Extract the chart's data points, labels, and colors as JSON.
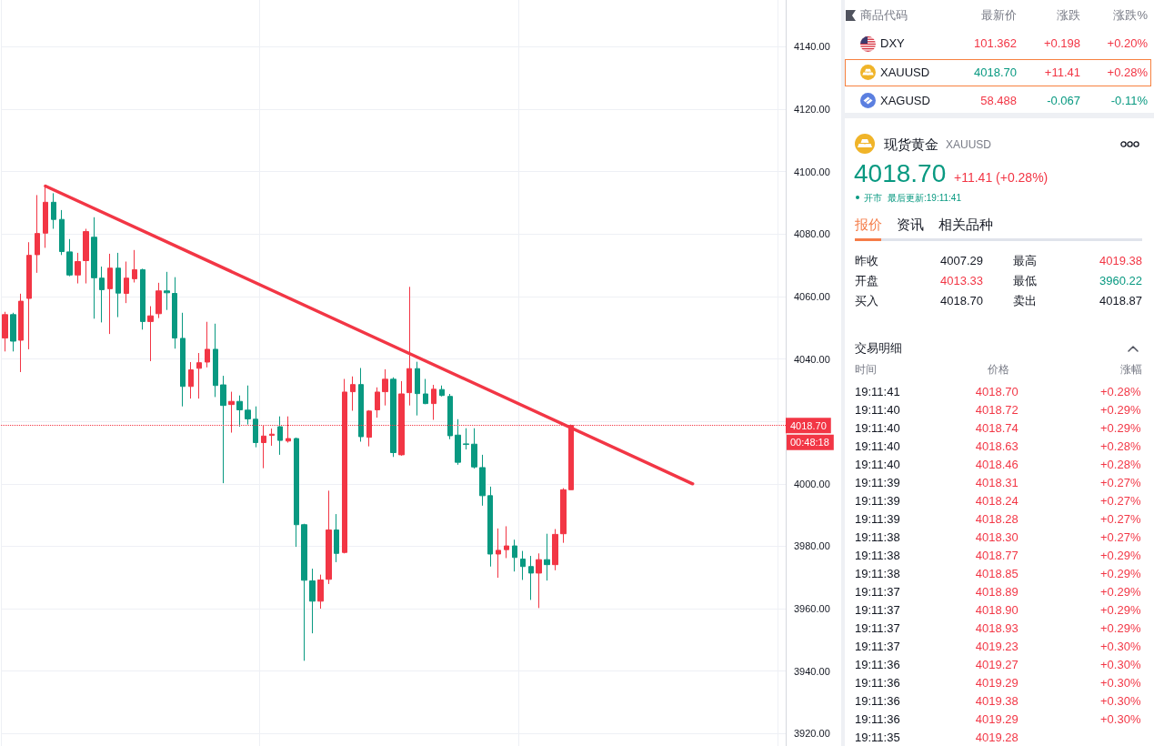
{
  "chart_data": [
    {
      "type": "candlestick",
      "categories": [
        null,
        null,
        null,
        null,
        null,
        null,
        null,
        null,
        null,
        null,
        null,
        null,
        null,
        null,
        null,
        null,
        null,
        null,
        null,
        null,
        null,
        null,
        null,
        null,
        null,
        null,
        null,
        null,
        null,
        null,
        null,
        null,
        null,
        null,
        null,
        null,
        null,
        null,
        null,
        null,
        null,
        null,
        null,
        null,
        null,
        null,
        null,
        null,
        null,
        null,
        null,
        null,
        null,
        null,
        null,
        null,
        null,
        null,
        null,
        null,
        null,
        null,
        null,
        null,
        null,
        null,
        null,
        null,
        null,
        null,
        null,
        null,
        null,
        null,
        null,
        null,
        null,
        null,
        null,
        null,
        null,
        null,
        null,
        null,
        null,
        null,
        null,
        null,
        null,
        null,
        null,
        null,
        null,
        null,
        null,
        null,
        null
      ],
      "series": [
        {
          "type": "candlestick",
          "ohlc": [
            [
              4046.7,
              4055.1,
              4042.4,
              4054.2
            ],
            [
              4054.2,
              4054.8,
              4042.4,
              4045.7
            ],
            [
              4046.0,
              4060.9,
              4035.8,
              4058.5
            ],
            [
              4059.4,
              4077.4,
              4043.1,
              4073.2
            ],
            [
              4073.4,
              4092.5,
              4067.6,
              4080.2
            ],
            [
              4080.3,
              4095.4,
              4075.6,
              4090.2
            ],
            [
              4090.2,
              4093.1,
              4081.7,
              4084.7
            ],
            [
              4084.7,
              4087.7,
              4073.3,
              4074.4
            ],
            [
              4074.3,
              4078.4,
              4066.5,
              4066.9
            ],
            [
              4066.9,
              4074.0,
              4064.2,
              4071.2
            ],
            [
              4071.5,
              4081.7,
              4064.2,
              4080.8
            ],
            [
              4079.0,
              4085.4,
              4052.9,
              4066.0
            ],
            [
              4065.9,
              4069.6,
              4051.7,
              4062.2
            ],
            [
              4062.5,
              4073.7,
              4048.0,
              4069.1
            ],
            [
              4069.1,
              4074.0,
              4053.4,
              4061.1
            ],
            [
              4061.0,
              4071.2,
              4057.9,
              4065.9
            ],
            [
              4065.7,
              4074.9,
              4064.5,
              4068.6
            ],
            [
              4068.6,
              4068.9,
              4049.4,
              4052.0
            ],
            [
              4052.0,
              4056.9,
              4039.3,
              4053.8
            ],
            [
              4054.5,
              4064.4,
              4053.1,
              4061.8
            ],
            [
              4061.8,
              4067.9,
              4055.7,
              4061.2
            ],
            [
              4061.0,
              4066.2,
              4043.3,
              4046.7
            ],
            [
              4046.6,
              4054.8,
              4024.8,
              4031.2
            ],
            [
              4031.2,
              4039.0,
              4027.3,
              4036.5
            ],
            [
              4037.0,
              4041.9,
              4027.3,
              4038.8
            ],
            [
              4039.0,
              4051.9,
              4037.3,
              4043.1
            ],
            [
              4043.1,
              4051.3,
              4027.8,
              4031.5
            ],
            [
              4031.7,
              4034.6,
              4000.2,
              4025.1
            ],
            [
              4025.4,
              4029.5,
              4016.4,
              4026.4
            ],
            [
              4026.4,
              4028.3,
              4018.3,
              4023.7
            ],
            [
              4023.6,
              4031.5,
              4019.0,
              4020.8
            ],
            [
              4020.7,
              4024.8,
              4011.7,
              4013.2
            ],
            [
              4013.2,
              4018.8,
              4005.0,
              4015.3
            ],
            [
              4015.5,
              4017.7,
              4012.2,
              4015.9
            ],
            [
              4018.3,
              4021.6,
              4009.3,
              4013.9
            ],
            [
              4013.7,
              4021.6,
              4013.2,
              4014.5
            ],
            [
              4014.5,
              4014.8,
              3979.8,
              3986.9
            ],
            [
              3986.9,
              3987.2,
              3943.3,
              3969.1
            ],
            [
              3968.9,
              3972.8,
              3952.1,
              3962.4
            ],
            [
              3962.4,
              3970.9,
              3960.0,
              3969.2
            ],
            [
              3969.4,
              3997.8,
              3967.9,
              3985.2
            ],
            [
              3985.2,
              3990.3,
              3974.9,
              3977.7
            ],
            [
              3978.0,
              4033.6,
              3977.7,
              4029.4
            ],
            [
              4029.5,
              4034.4,
              4023.4,
              4031.8
            ],
            [
              4031.8,
              4037.1,
              4013.5,
              4015.1
            ],
            [
              4014.9,
              4023.6,
              4012.0,
              4023.3
            ],
            [
              4023.7,
              4030.9,
              4021.2,
              4029.4
            ],
            [
              4029.5,
              4036.7,
              4025.1,
              4033.5
            ],
            [
              4033.5,
              4034.1,
              4008.6,
              4010.0
            ],
            [
              4009.3,
              4032.9,
              4009.0,
              4028.8
            ],
            [
              4029.2,
              4063.1,
              4025.1,
              4036.9
            ],
            [
              4036.9,
              4039.1,
              4021.9,
              4028.9
            ],
            [
              4028.8,
              4033.6,
              4025.5,
              4025.7
            ],
            [
              4025.7,
              4031.7,
              4020.5,
              4030.3
            ],
            [
              4030.2,
              4031.5,
              4028.0,
              4028.3
            ],
            [
              4028.0,
              4028.8,
              4014.3,
              4015.4
            ],
            [
              4015.6,
              4020.7,
              4006.1,
              4006.9
            ],
            [
              4012.8,
              4017.8,
              4011.0,
              4012.6
            ],
            [
              4012.7,
              4017.8,
              4004.9,
              4005.4
            ],
            [
              4005.2,
              4009.3,
              3993.0,
              3996.2
            ],
            [
              3996.2,
              3999.1,
              3973.5,
              3977.5
            ],
            [
              3977.5,
              3985.7,
              3969.9,
              3978.7
            ],
            [
              3978.9,
              3986.4,
              3976.2,
              3980.1
            ],
            [
              3980.1,
              3982.1,
              3971.9,
              3976.4
            ],
            [
              3975.9,
              3978.5,
              3969.2,
              3973.5
            ],
            [
              3973.5,
              3976.9,
              3962.8,
              3971.4
            ],
            [
              3971.4,
              3977.7,
              3960.2,
              3975.7
            ],
            [
              3975.7,
              3984.0,
              3969.0,
              3974.1
            ],
            [
              3974.1,
              3985.5,
              3972.3,
              3983.8
            ],
            [
              3984.0,
              3998.6,
              3981.1,
              3998.1
            ],
            [
              3998.1,
              4019.0,
              3998.1,
              4018.7
            ],
            null,
            null,
            null,
            null,
            null,
            null,
            null,
            null,
            null,
            null,
            null,
            null,
            null,
            null,
            null,
            null,
            null,
            null,
            null,
            null,
            null,
            null,
            null,
            null,
            null,
            null
          ],
          "colors": [
            "#f23645",
            "#089981",
            "#f23645",
            "#f23645",
            "#f23645",
            "#f23645",
            "#089981",
            "#089981",
            "#089981",
            "#f23645",
            "#f23645",
            "#089981",
            "#089981",
            "#f23645",
            "#089981",
            "#f23645",
            "#f23645",
            "#089981",
            "#f23645",
            "#f23645",
            "#089981",
            "#089981",
            "#089981",
            "#f23645",
            "#f23645",
            "#f23645",
            "#089981",
            "#089981",
            "#f23645",
            "#089981",
            "#089981",
            "#089981",
            "#f23645",
            "#f23645",
            "#089981",
            "#f23645",
            "#089981",
            "#089981",
            "#089981",
            "#f23645",
            "#f23645",
            "#089981",
            "#f23645",
            "#f23645",
            "#089981",
            "#f23645",
            "#f23645",
            "#f23645",
            "#089981",
            "#f23645",
            "#f23645",
            "#089981",
            "#089981",
            "#f23645",
            "#089981",
            "#089981",
            "#089981",
            "#089981",
            "#089981",
            "#089981",
            "#089981",
            "#f23645",
            "#f23645",
            "#089981",
            "#089981",
            "#089981",
            "#f23645",
            "#089981",
            "#f23645",
            "#f23645",
            "#f23645",
            null,
            null,
            null,
            null,
            null,
            null,
            null,
            null,
            null,
            null,
            null,
            null,
            null,
            null,
            null,
            null,
            null,
            null,
            null,
            null,
            null,
            null,
            null,
            null,
            null,
            null
          ]
        },
        {
          "type": "line",
          "color": "#f23645",
          "values": [
            null,
            null,
            null,
            null,
            null,
            4095.4,
            null,
            null,
            null,
            null,
            null,
            null,
            null,
            null,
            null,
            null,
            null,
            null,
            null,
            null,
            null,
            null,
            null,
            null,
            null,
            null,
            null,
            null,
            null,
            null,
            null,
            null,
            null,
            null,
            null,
            null,
            null,
            null,
            null,
            null,
            null,
            null,
            null,
            null,
            null,
            null,
            null,
            null,
            null,
            null,
            null,
            null,
            null,
            null,
            null,
            null,
            null,
            null,
            null,
            null,
            null,
            null,
            null,
            null,
            null,
            null,
            null,
            null,
            null,
            null,
            null,
            null,
            null,
            null,
            null,
            null,
            null,
            null,
            null,
            null,
            null,
            null,
            null,
            null,
            null,
            4000.0,
            null,
            null,
            null,
            null,
            null,
            null,
            null,
            null,
            null,
            null,
            null
          ]
        }
      ],
      "ylim": [
        3916,
        4155
      ],
      "yticks": [
        {
          "value": 3920,
          "label": "3920.00"
        },
        {
          "value": 3940,
          "label": "3940.00"
        },
        {
          "value": 3960,
          "label": "3960.00"
        },
        {
          "value": 3980,
          "label": "3980.00"
        },
        {
          "value": 4000,
          "label": "4000.00"
        },
        {
          "value": 4020,
          "label": null
        },
        {
          "value": 4040,
          "label": "4040.00"
        },
        {
          "value": 4060,
          "label": "4060.00"
        },
        {
          "value": 4080,
          "label": "4080.00"
        },
        {
          "value": 4100,
          "label": "4100.00"
        },
        {
          "value": 4120,
          "label": "4120.00"
        },
        {
          "value": 4140,
          "label": "4140.00"
        }
      ],
      "grid": true,
      "tick_labels": "y",
      "ref_lines": [
        {
          "axis": "y",
          "value": 4018.7,
          "label": "4018.70",
          "color": "#f23645",
          "line_style": "dotted"
        }
      ],
      "annotations": [
        "00:48:18"
      ]
    },
    {
      "type": "other",
      "annotations": [
        "商品代码",
        "最新价",
        "涨跌",
        "涨跌%",
        "DXY",
        "101.362",
        "+0.198",
        "+0.20%",
        "XAUUSD",
        "4018.70",
        "+11.41",
        "+0.28%",
        "XAGUSD",
        "58.488",
        "-0.067",
        "-0.11%",
        "现货黄金",
        "XAUUSD",
        "4018.70",
        "+11.41 (+0.28%)",
        "开市",
        "最后更新:19:11:41",
        "报价",
        "资讯",
        "相关品种",
        "昨收",
        "4007.29",
        "最高",
        "4019.38",
        "开盘",
        "4013.33",
        "最低",
        "3960.22",
        "买入",
        "4018.70",
        "卖出",
        "4018.87",
        "交易明细",
        "时间",
        "价格",
        "涨幅",
        "19:11:41",
        "4018.70",
        "+0.28%",
        "19:11:40",
        "4018.72",
        "+0.29%",
        "19:11:40",
        "4018.74",
        "+0.29%",
        "19:11:40",
        "4018.63",
        "+0.28%",
        "19:11:40",
        "4018.46",
        "+0.28%",
        "19:11:39",
        "4018.31",
        "+0.27%",
        "19:11:39",
        "4018.24",
        "+0.27%",
        "19:11:39",
        "4018.28",
        "+0.27%",
        "19:11:38",
        "4018.30",
        "+0.27%",
        "19:11:38",
        "4018.77",
        "+0.29%",
        "19:11:38",
        "4018.85",
        "+0.29%",
        "19:11:37",
        "4018.89",
        "+0.29%",
        "19:11:37",
        "4018.90",
        "+0.29%",
        "19:11:37",
        "4018.93",
        "+0.29%",
        "19:11:37",
        "4019.23",
        "+0.30%",
        "19:11:36",
        "4019.27",
        "+0.30%",
        "19:11:36",
        "4019.29",
        "+0.30%",
        "19:11:36",
        "4019.38",
        "+0.30%",
        "19:11:36",
        "4019.29",
        "+0.30%",
        "19:11:35",
        "4019.28"
      ]
    }
  ]
}
